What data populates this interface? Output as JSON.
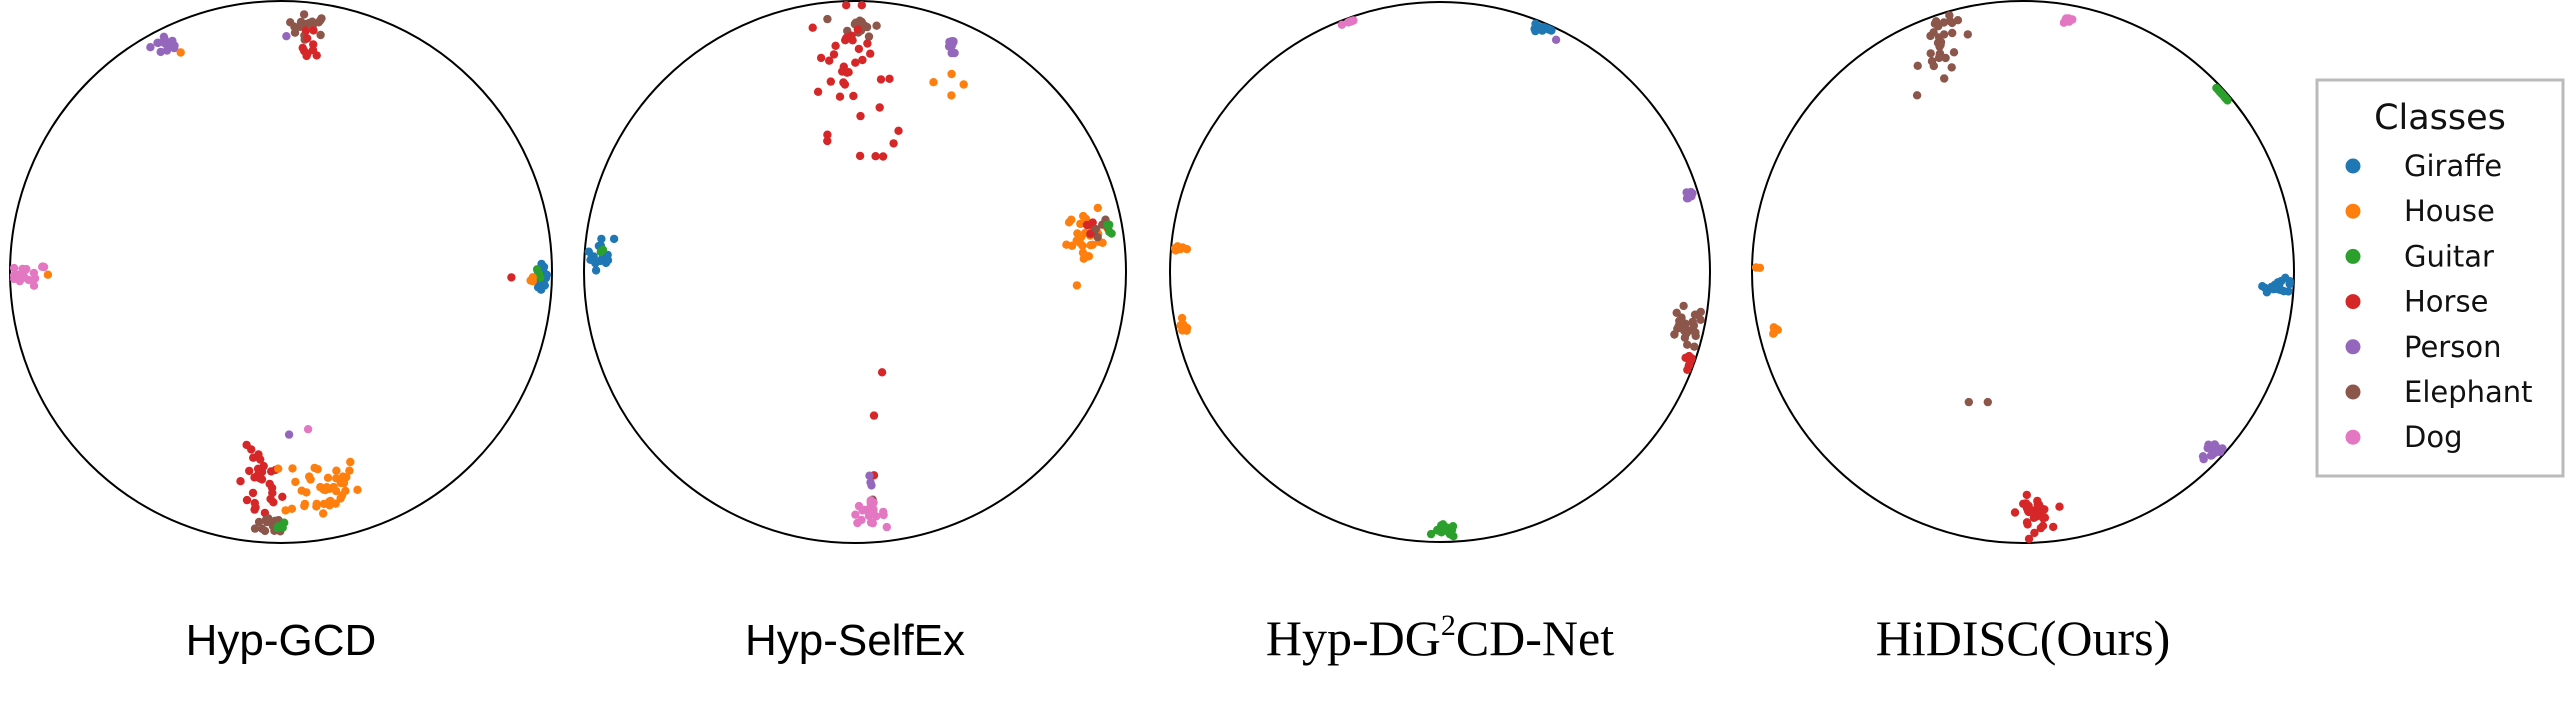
{
  "chart_data": {
    "type": "scatter",
    "projection": "Poincaré disk (unit disk, center [0,0], radius 1)",
    "xlim": [
      -1,
      1
    ],
    "ylim": [
      -1,
      1
    ],
    "grid": false,
    "legend": {
      "title": "Classes",
      "placement": "right",
      "entries": [
        {
          "label": "Giraffe",
          "color": "#1f77b4"
        },
        {
          "label": "House",
          "color": "#ff7f0e"
        },
        {
          "label": "Guitar",
          "color": "#2ca02c"
        },
        {
          "label": "Horse",
          "color": "#d62728"
        },
        {
          "label": "Person",
          "color": "#9467bd"
        },
        {
          "label": "Elephant",
          "color": "#8c564b"
        },
        {
          "label": "Dog",
          "color": "#e377c2"
        }
      ]
    },
    "panels": [
      {
        "title": "Hyp-GCD",
        "title_parts": {
          "base": "Hyp-GCD",
          "sup": "",
          "rest": ""
        },
        "title_style": "sans",
        "clusters": [
          {
            "class": "Person",
            "center": [
              -0.42,
              0.84
            ],
            "spread": [
              0.03,
              0.02
            ],
            "n": 14
          },
          {
            "class": "House",
            "center": [
              -0.37,
              0.81
            ],
            "spread": [
              0.005,
              0.005
            ],
            "n": 1
          },
          {
            "class": "Elephant",
            "center": [
              0.1,
              0.91
            ],
            "spread": [
              0.04,
              0.02
            ],
            "n": 16
          },
          {
            "class": "Horse",
            "center": [
              0.11,
              0.83
            ],
            "spread": [
              0.015,
              0.04
            ],
            "n": 10
          },
          {
            "class": "Person",
            "center": [
              0.02,
              0.87
            ],
            "spread": [
              0.005,
              0.005
            ],
            "n": 1
          },
          {
            "class": "Dog",
            "center": [
              -0.94,
              -0.01
            ],
            "spread": [
              0.04,
              0.02
            ],
            "n": 18
          },
          {
            "class": "House",
            "center": [
              -0.86,
              -0.01
            ],
            "spread": [
              0.004,
              0.004
            ],
            "n": 1
          },
          {
            "class": "Giraffe",
            "center": [
              0.96,
              -0.02
            ],
            "spread": [
              0.012,
              0.03
            ],
            "n": 14
          },
          {
            "class": "Guitar",
            "center": [
              0.95,
              -0.01
            ],
            "spread": [
              0.008,
              0.008
            ],
            "n": 3
          },
          {
            "class": "House",
            "center": [
              0.93,
              -0.03
            ],
            "spread": [
              0.008,
              0.008
            ],
            "n": 3
          },
          {
            "class": "Horse",
            "center": [
              0.85,
              -0.02
            ],
            "spread": [
              0.004,
              0.004
            ],
            "n": 1
          },
          {
            "class": "Horse",
            "center": [
              -0.08,
              -0.79
            ],
            "spread": [
              0.04,
              0.07
            ],
            "n": 28
          },
          {
            "class": "House",
            "center": [
              0.15,
              -0.79
            ],
            "spread": [
              0.07,
              0.06
            ],
            "n": 42
          },
          {
            "class": "Elephant",
            "center": [
              -0.02,
              -0.93
            ],
            "spread": [
              0.035,
              0.02
            ],
            "n": 16
          },
          {
            "class": "Guitar",
            "center": [
              -0.01,
              -0.94
            ],
            "spread": [
              0.015,
              0.01
            ],
            "n": 5
          },
          {
            "class": "Person",
            "center": [
              0.03,
              -0.6
            ],
            "spread": [
              0.004,
              0.004
            ],
            "n": 1
          },
          {
            "class": "Dog",
            "center": [
              0.1,
              -0.58
            ],
            "spread": [
              0.004,
              0.004
            ],
            "n": 1
          }
        ]
      },
      {
        "title": "Hyp-SelfEx",
        "title_parts": {
          "base": "Hyp-SelfEx",
          "sup": "",
          "rest": ""
        },
        "title_style": "sans",
        "clusters": [
          {
            "class": "Elephant",
            "center": [
              0.02,
              0.91
            ],
            "spread": [
              0.035,
              0.02
            ],
            "n": 14
          },
          {
            "class": "Horse",
            "center": [
              -0.03,
              0.76
            ],
            "spread": [
              0.07,
              0.12
            ],
            "n": 34
          },
          {
            "class": "Horse",
            "center": [
              0.08,
              0.45
            ],
            "spread": [
              0.03,
              0.03
            ],
            "n": 4
          },
          {
            "class": "House",
            "center": [
              0.29,
              0.7
            ],
            "spread": [
              0.04,
              0.03
            ],
            "n": 4
          },
          {
            "class": "Person",
            "center": [
              0.36,
              0.83
            ],
            "spread": [
              0.015,
              0.025
            ],
            "n": 8
          },
          {
            "class": "Giraffe",
            "center": [
              -0.94,
              0.07
            ],
            "spread": [
              0.025,
              0.03
            ],
            "n": 16
          },
          {
            "class": "Guitar",
            "center": [
              -0.94,
              0.08
            ],
            "spread": [
              0.006,
              0.006
            ],
            "n": 2
          },
          {
            "class": "House",
            "center": [
              0.86,
              0.12
            ],
            "spread": [
              0.04,
              0.05
            ],
            "n": 30
          },
          {
            "class": "Horse",
            "center": [
              0.88,
              0.18
            ],
            "spread": [
              0.03,
              0.015
            ],
            "n": 6
          },
          {
            "class": "Elephant",
            "center": [
              0.91,
              0.16
            ],
            "spread": [
              0.015,
              0.015
            ],
            "n": 5
          },
          {
            "class": "Guitar",
            "center": [
              0.94,
              0.16
            ],
            "spread": [
              0.01,
              0.01
            ],
            "n": 4
          },
          {
            "class": "Horse",
            "center": [
              0.1,
              -0.37
            ],
            "spread": [
              0.004,
              0.004
            ],
            "n": 1
          },
          {
            "class": "Horse",
            "center": [
              0.07,
              -0.53
            ],
            "spread": [
              0.004,
              0.004
            ],
            "n": 1
          },
          {
            "class": "Horse",
            "center": [
              0.07,
              -0.75
            ],
            "spread": [
              0.004,
              0.004
            ],
            "n": 1
          },
          {
            "class": "Person",
            "center": [
              0.06,
              -0.8
            ],
            "spread": [
              0.01,
              0.025
            ],
            "n": 3
          },
          {
            "class": "Elephant",
            "center": [
              0.06,
              -0.84
            ],
            "spread": [
              0.006,
              0.006
            ],
            "n": 2
          },
          {
            "class": "Dog",
            "center": [
              0.05,
              -0.89
            ],
            "spread": [
              0.03,
              0.02
            ],
            "n": 22
          }
        ]
      },
      {
        "title": "Hyp-DG²CD-Net",
        "title_parts": {
          "base": "Hyp-DG",
          "sup": "2",
          "rest": "CD-Net"
        },
        "title_style": "serif",
        "clusters": [
          {
            "class": "Dog",
            "center": [
              -0.34,
              0.95
            ],
            "spread": [
              0.015,
              0.01
            ],
            "n": 9
          },
          {
            "class": "Giraffe",
            "center": [
              0.39,
              0.91
            ],
            "spread": [
              0.025,
              0.015
            ],
            "n": 16
          },
          {
            "class": "Person",
            "center": [
              0.43,
              0.86
            ],
            "spread": [
              0.004,
              0.004
            ],
            "n": 1
          },
          {
            "class": "Person",
            "center": [
              0.92,
              0.29
            ],
            "spread": [
              0.012,
              0.015
            ],
            "n": 9
          },
          {
            "class": "House",
            "center": [
              -0.96,
              0.09
            ],
            "spread": [
              0.02,
              0.01
            ],
            "n": 8
          },
          {
            "class": "House",
            "center": [
              -0.95,
              -0.21
            ],
            "spread": [
              0.012,
              0.012
            ],
            "n": 6
          },
          {
            "class": "Elephant",
            "center": [
              0.91,
              -0.21
            ],
            "spread": [
              0.035,
              0.04
            ],
            "n": 26
          },
          {
            "class": "Horse",
            "center": [
              0.93,
              -0.34
            ],
            "spread": [
              0.015,
              0.015
            ],
            "n": 9
          },
          {
            "class": "Guitar",
            "center": [
              0.02,
              -0.96
            ],
            "spread": [
              0.02,
              0.012
            ],
            "n": 16
          }
        ]
      },
      {
        "title": "HiDISC(Ours)",
        "title_parts": {
          "base": "HiDISC(Ours)",
          "sup": "",
          "rest": ""
        },
        "title_style": "serif",
        "clusters": [
          {
            "class": "Elephant",
            "center": [
              -0.3,
              0.83
            ],
            "spread": [
              0.04,
              0.07
            ],
            "n": 30
          },
          {
            "class": "Dog",
            "center": [
              0.17,
              0.93
            ],
            "spread": [
              0.012,
              0.01
            ],
            "n": 8
          },
          {
            "class": "Guitar",
            "center": [
              0.77,
              0.68
            ],
            "spread": [
              0.012,
              0.02
            ],
            "n": 12
          },
          {
            "class": "House",
            "center": [
              -0.98,
              0.02
            ],
            "spread": [
              0.006,
              0.006
            ],
            "n": 2
          },
          {
            "class": "House",
            "center": [
              -0.92,
              -0.21
            ],
            "spread": [
              0.012,
              0.012
            ],
            "n": 6
          },
          {
            "class": "Giraffe",
            "center": [
              0.95,
              -0.05
            ],
            "spread": [
              0.03,
              0.012
            ],
            "n": 20
          },
          {
            "class": "Elephant",
            "center": [
              -0.2,
              -0.48
            ],
            "spread": [
              0.004,
              0.004
            ],
            "n": 1
          },
          {
            "class": "Elephant",
            "center": [
              -0.13,
              -0.48
            ],
            "spread": [
              0.004,
              0.004
            ],
            "n": 1
          },
          {
            "class": "Person",
            "center": [
              0.7,
              -0.66
            ],
            "spread": [
              0.025,
              0.015
            ],
            "n": 18
          },
          {
            "class": "Horse",
            "center": [
              0.04,
              -0.89
            ],
            "spread": [
              0.03,
              0.03
            ],
            "n": 30
          }
        ]
      }
    ]
  }
}
